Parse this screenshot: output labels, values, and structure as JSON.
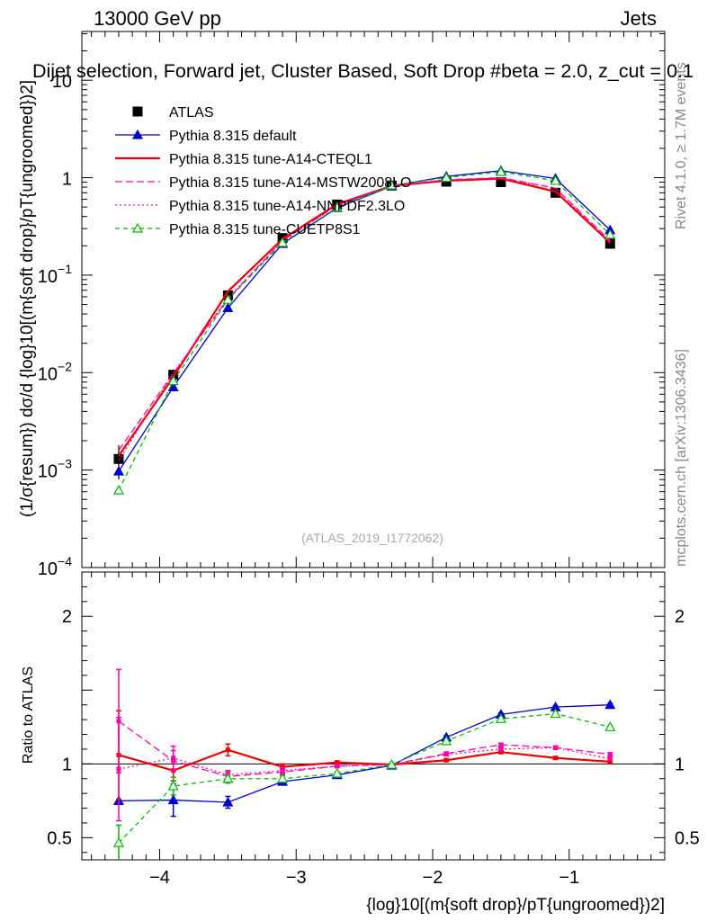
{
  "header": {
    "energy_label": "13000 GeV pp",
    "category_label": "Jets",
    "plot_title": "Dijet selection, Forward jet, Cluster Based, Soft Drop #beta = 2.0, z_cut = 0.1",
    "analysis_id": "(ATLAS_2019_I1772062)",
    "side_rivet": "Rivet 4.1.0, ≥ 1.7M events",
    "side_mcplots": "mcplots.cern.ch [arXiv:1306.3436]"
  },
  "axes": {
    "main_ylabel": "(1/σ{resum}) dσ/d {log}10[(m{soft drop}/pT{ungroomed})2]",
    "ratio_ylabel": "Ratio to ATLAS",
    "xlabel": "{log}10[(m{soft drop}/pT{ungroomed})2]"
  },
  "chart_data": {
    "type": "line",
    "x": [
      -4.3,
      -3.9,
      -3.5,
      -3.1,
      -2.7,
      -2.3,
      -1.9,
      -1.5,
      -1.1,
      -0.7
    ],
    "xlim": [
      -4.57,
      -0.3
    ],
    "main_ylim_log10": [
      -4,
      1.5
    ],
    "ratio_ylim": [
      0.35,
      2.3
    ],
    "main_yticks": [
      {
        "value": 0.0001,
        "base": "10",
        "exp": "−4"
      },
      {
        "value": 0.001,
        "base": "10",
        "exp": "−3"
      },
      {
        "value": 0.01,
        "base": "10",
        "exp": "−2"
      },
      {
        "value": 0.1,
        "base": "10",
        "exp": "−1"
      },
      {
        "value": 1,
        "base": "1",
        "exp": ""
      },
      {
        "value": 10,
        "base": "10",
        "exp": ""
      }
    ],
    "ratio_yticks": [
      {
        "value": 0.5,
        "label": "0.5"
      },
      {
        "value": 1,
        "label": "1"
      },
      {
        "value": 2,
        "label": "2"
      }
    ],
    "xticks": [
      {
        "value": -4,
        "label": "−4"
      },
      {
        "value": -3,
        "label": "−3"
      },
      {
        "value": -2,
        "label": "−2"
      },
      {
        "value": -1,
        "label": "−1"
      }
    ],
    "data_series": {
      "name": "ATLAS",
      "values": [
        0.0013,
        0.0095,
        0.062,
        0.24,
        0.53,
        0.83,
        0.91,
        0.9,
        0.7,
        0.21
      ],
      "errors": [
        0.0005,
        0.0012,
        0.004,
        0.012,
        0.02,
        0.025,
        0.03,
        0.03,
        0.025,
        0.012
      ]
    },
    "series": [
      {
        "name": "Pythia 8.315 default",
        "color": "#0000cc",
        "dash": "",
        "marker": "triangle",
        "filled": true,
        "values": [
          0.00097,
          0.0071,
          0.046,
          0.21,
          0.49,
          0.82,
          1.03,
          1.18,
          0.98,
          0.29
        ],
        "ratio": [
          0.75,
          0.755,
          0.74,
          0.88,
          0.925,
          0.99,
          1.18,
          1.335,
          1.385,
          1.4
        ],
        "ratio_err": [
          0.0,
          0.11,
          0.04,
          0.02,
          0.01,
          0.01,
          0.01,
          0.01,
          0.01,
          0.01
        ]
      },
      {
        "name": "Pythia 8.315 tune-A14-CTEQL1",
        "color": "#ee0000",
        "dash": "",
        "marker": "none",
        "filled": false,
        "values": [
          0.0014,
          0.009,
          0.068,
          0.235,
          0.535,
          0.825,
          0.93,
          0.98,
          0.72,
          0.215
        ],
        "ratio": [
          1.06,
          0.955,
          1.095,
          0.98,
          1.01,
          0.995,
          1.025,
          1.08,
          1.04,
          1.015
        ],
        "ratio_err": [
          0.3,
          0.07,
          0.04,
          0.02,
          0.01,
          0.01,
          0.01,
          0.01,
          0.01,
          0.01
        ]
      },
      {
        "name": "Pythia 8.315 tune-A14-MSTW2008LO",
        "color": "#ff00aa",
        "dash": "8,4",
        "marker": "none",
        "filled": false,
        "values": [
          0.0016,
          0.0098,
          0.057,
          0.225,
          0.52,
          0.825,
          0.95,
          1.0,
          0.78,
          0.225
        ],
        "ratio": [
          1.29,
          1.02,
          0.915,
          0.945,
          0.985,
          0.995,
          1.07,
          1.13,
          1.11,
          1.065
        ],
        "ratio_err": [
          0.35,
          0.07,
          0.03,
          0.02,
          0.01,
          0.01,
          0.01,
          0.01,
          0.01,
          0.01
        ]
      },
      {
        "name": "Pythia 8.315 tune-A14-NNPDF2.3LO",
        "color": "#ff00aa",
        "dash": "2,3",
        "marker": "none",
        "filled": false,
        "values": [
          0.00125,
          0.0099,
          0.058,
          0.225,
          0.52,
          0.825,
          0.95,
          0.99,
          0.78,
          0.215
        ],
        "ratio": [
          0.965,
          1.04,
          0.925,
          0.955,
          0.985,
          0.995,
          1.065,
          1.1,
          1.11,
          1.035
        ],
        "ratio_err": [
          0.35,
          0.08,
          0.03,
          0.02,
          0.01,
          0.01,
          0.01,
          0.01,
          0.01,
          0.01
        ]
      },
      {
        "name": "Pythia 8.315 tune-CUETP8S1",
        "color": "#00bb00",
        "dash": "5,4",
        "marker": "triangle",
        "filled": false,
        "values": [
          0.00062,
          0.0082,
          0.056,
          0.215,
          0.495,
          0.835,
          1.0,
          1.15,
          0.93,
          0.26
        ],
        "ratio": [
          0.465,
          0.85,
          0.9,
          0.9,
          0.935,
          0.995,
          1.155,
          1.305,
          1.34,
          1.25
        ],
        "ratio_err": [
          0.12,
          0.06,
          0.03,
          0.02,
          0.01,
          0.01,
          0.01,
          0.01,
          0.01,
          0.01
        ]
      }
    ]
  }
}
